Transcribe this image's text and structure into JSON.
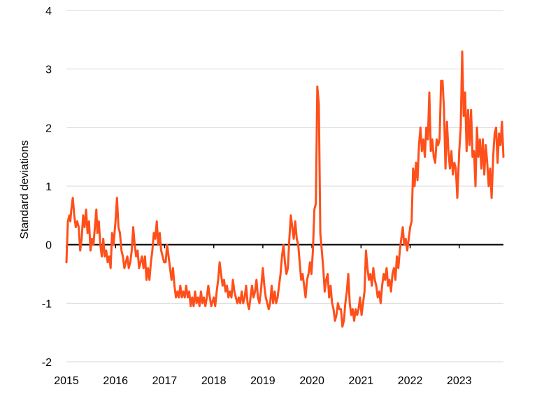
{
  "chart_data": {
    "type": "line",
    "title": "",
    "xlabel": "",
    "ylabel": "Standard deviations",
    "ylim": [
      -2,
      4
    ],
    "xlim": [
      2015.0,
      2023.9
    ],
    "yticks": [
      "4",
      "3",
      "2",
      "1",
      "0",
      "-1",
      "-2"
    ],
    "ytick_values": [
      4,
      3,
      2,
      1,
      0,
      -1,
      -2
    ],
    "xticks": [
      "2015",
      "2016",
      "2017",
      "2018",
      "2019",
      "2020",
      "2021",
      "2022",
      "2023"
    ],
    "xtick_values": [
      2015.0,
      2016.0,
      2017.0,
      2018.0,
      2019.0,
      2020.0,
      2021.0,
      2022.0,
      2023.0
    ],
    "grid": "horizontal",
    "line_color": "#ff4f1a",
    "zero_line": true,
    "series": [
      {
        "values": [
          [
            2015.0,
            -0.3
          ],
          [
            2015.03,
            0.4
          ],
          [
            2015.06,
            0.5
          ],
          [
            2015.08,
            0.4
          ],
          [
            2015.1,
            0.6
          ],
          [
            2015.13,
            0.8
          ],
          [
            2015.16,
            0.5
          ],
          [
            2015.19,
            0.3
          ],
          [
            2015.22,
            0.4
          ],
          [
            2015.25,
            0.3
          ],
          [
            2015.28,
            -0.1
          ],
          [
            2015.31,
            0.1
          ],
          [
            2015.34,
            0.5
          ],
          [
            2015.37,
            0.3
          ],
          [
            2015.4,
            0.6
          ],
          [
            2015.43,
            0.2
          ],
          [
            2015.46,
            0.4
          ],
          [
            2015.49,
            -0.1
          ],
          [
            2015.52,
            0.1
          ],
          [
            2015.55,
            0.0
          ],
          [
            2015.58,
            0.3
          ],
          [
            2015.61,
            0.6
          ],
          [
            2015.63,
            0.2
          ],
          [
            2015.66,
            0.4
          ],
          [
            2015.69,
            0.0
          ],
          [
            2015.72,
            -0.2
          ],
          [
            2015.75,
            0.1
          ],
          [
            2015.78,
            -0.2
          ],
          [
            2015.81,
            -0.1
          ],
          [
            2015.84,
            -0.3
          ],
          [
            2015.87,
            -0.2
          ],
          [
            2015.9,
            -0.4
          ],
          [
            2015.93,
            0.2
          ],
          [
            2015.96,
            0.0
          ],
          [
            2016.0,
            0.4
          ],
          [
            2016.03,
            0.8
          ],
          [
            2016.06,
            0.3
          ],
          [
            2016.09,
            0.2
          ],
          [
            2016.12,
            -0.1
          ],
          [
            2016.15,
            -0.2
          ],
          [
            2016.18,
            -0.4
          ],
          [
            2016.21,
            -0.3
          ],
          [
            2016.24,
            -0.2
          ],
          [
            2016.27,
            -0.4
          ],
          [
            2016.3,
            -0.3
          ],
          [
            2016.33,
            -0.1
          ],
          [
            2016.36,
            0.3
          ],
          [
            2016.39,
            0.0
          ],
          [
            2016.42,
            -0.2
          ],
          [
            2016.45,
            -0.1
          ],
          [
            2016.48,
            -0.4
          ],
          [
            2016.51,
            -0.3
          ],
          [
            2016.54,
            -0.2
          ],
          [
            2016.57,
            -0.4
          ],
          [
            2016.6,
            -0.2
          ],
          [
            2016.63,
            -0.6
          ],
          [
            2016.66,
            -0.4
          ],
          [
            2016.69,
            -0.6
          ],
          [
            2016.72,
            -0.3
          ],
          [
            2016.75,
            -0.1
          ],
          [
            2016.78,
            0.2
          ],
          [
            2016.81,
            0.1
          ],
          [
            2016.84,
            0.4
          ],
          [
            2016.87,
            0.0
          ],
          [
            2016.9,
            0.2
          ],
          [
            2016.93,
            -0.1
          ],
          [
            2016.96,
            -0.2
          ],
          [
            2016.99,
            -0.3
          ],
          [
            2017.02,
            -0.3
          ],
          [
            2017.05,
            0.0
          ],
          [
            2017.08,
            -0.2
          ],
          [
            2017.11,
            -0.4
          ],
          [
            2017.14,
            -0.6
          ],
          [
            2017.17,
            -0.4
          ],
          [
            2017.2,
            -0.7
          ],
          [
            2017.23,
            -0.9
          ],
          [
            2017.26,
            -0.8
          ],
          [
            2017.29,
            -0.9
          ],
          [
            2017.32,
            -0.7
          ],
          [
            2017.35,
            -0.9
          ],
          [
            2017.38,
            -0.8
          ],
          [
            2017.41,
            -0.9
          ],
          [
            2017.44,
            -0.7
          ],
          [
            2017.47,
            -0.9
          ],
          [
            2017.5,
            -0.8
          ],
          [
            2017.53,
            -1.05
          ],
          [
            2017.56,
            -0.9
          ],
          [
            2017.59,
            -1.05
          ],
          [
            2017.62,
            -0.8
          ],
          [
            2017.65,
            -1.0
          ],
          [
            2017.68,
            -0.9
          ],
          [
            2017.71,
            -1.05
          ],
          [
            2017.74,
            -0.8
          ],
          [
            2017.77,
            -1.0
          ],
          [
            2017.8,
            -0.9
          ],
          [
            2017.83,
            -1.05
          ],
          [
            2017.86,
            -0.9
          ],
          [
            2017.89,
            -0.7
          ],
          [
            2017.92,
            -0.9
          ],
          [
            2017.95,
            -1.05
          ],
          [
            2018.0,
            -0.9
          ],
          [
            2018.03,
            -1.05
          ],
          [
            2018.06,
            -0.8
          ],
          [
            2018.09,
            -0.6
          ],
          [
            2018.12,
            -0.3
          ],
          [
            2018.15,
            -0.5
          ],
          [
            2018.18,
            -0.7
          ],
          [
            2018.21,
            -0.6
          ],
          [
            2018.24,
            -0.8
          ],
          [
            2018.27,
            -0.7
          ],
          [
            2018.3,
            -0.9
          ],
          [
            2018.33,
            -0.8
          ],
          [
            2018.36,
            -0.9
          ],
          [
            2018.39,
            -0.6
          ],
          [
            2018.42,
            -0.8
          ],
          [
            2018.45,
            -0.9
          ],
          [
            2018.48,
            -1.0
          ],
          [
            2018.51,
            -0.9
          ],
          [
            2018.54,
            -1.0
          ],
          [
            2018.57,
            -0.8
          ],
          [
            2018.6,
            -1.0
          ],
          [
            2018.63,
            -0.9
          ],
          [
            2018.66,
            -0.7
          ],
          [
            2018.69,
            -1.0
          ],
          [
            2018.72,
            -1.1
          ],
          [
            2018.75,
            -0.9
          ],
          [
            2018.78,
            -0.7
          ],
          [
            2018.81,
            -0.9
          ],
          [
            2018.84,
            -0.8
          ],
          [
            2018.87,
            -0.6
          ],
          [
            2018.9,
            -0.9
          ],
          [
            2018.93,
            -1.0
          ],
          [
            2018.96,
            -0.8
          ],
          [
            2019.0,
            -0.4
          ],
          [
            2019.03,
            -0.7
          ],
          [
            2019.06,
            -0.9
          ],
          [
            2019.09,
            -1.0
          ],
          [
            2019.12,
            -1.1
          ],
          [
            2019.15,
            -1.0
          ],
          [
            2019.18,
            -0.7
          ],
          [
            2019.21,
            -1.0
          ],
          [
            2019.24,
            -0.8
          ],
          [
            2019.27,
            -1.0
          ],
          [
            2019.3,
            -0.9
          ],
          [
            2019.33,
            -0.7
          ],
          [
            2019.36,
            -0.5
          ],
          [
            2019.39,
            -0.2
          ],
          [
            2019.42,
            0.0
          ],
          [
            2019.45,
            -0.3
          ],
          [
            2019.48,
            -0.5
          ],
          [
            2019.51,
            -0.4
          ],
          [
            2019.54,
            0.1
          ],
          [
            2019.57,
            0.5
          ],
          [
            2019.6,
            0.3
          ],
          [
            2019.63,
            0.1
          ],
          [
            2019.66,
            0.4
          ],
          [
            2019.69,
            0.1
          ],
          [
            2019.72,
            0.0
          ],
          [
            2019.75,
            -0.3
          ],
          [
            2019.78,
            -0.6
          ],
          [
            2019.81,
            -0.5
          ],
          [
            2019.84,
            -0.7
          ],
          [
            2019.87,
            -0.9
          ],
          [
            2019.9,
            -0.6
          ],
          [
            2019.93,
            -0.5
          ],
          [
            2019.96,
            -0.3
          ],
          [
            2019.99,
            -0.5
          ],
          [
            2020.02,
            -0.1
          ],
          [
            2020.05,
            0.6
          ],
          [
            2020.08,
            0.7
          ],
          [
            2020.11,
            2.7
          ],
          [
            2020.14,
            2.4
          ],
          [
            2020.17,
            0.2
          ],
          [
            2020.2,
            -0.1
          ],
          [
            2020.23,
            -0.4
          ],
          [
            2020.26,
            -0.8
          ],
          [
            2020.29,
            -0.6
          ],
          [
            2020.32,
            -0.5
          ],
          [
            2020.35,
            -0.9
          ],
          [
            2020.38,
            -0.7
          ],
          [
            2020.41,
            -1.0
          ],
          [
            2020.44,
            -1.1
          ],
          [
            2020.47,
            -1.3
          ],
          [
            2020.5,
            -1.2
          ],
          [
            2020.53,
            -1.0
          ],
          [
            2020.56,
            -1.1
          ],
          [
            2020.59,
            -1.1
          ],
          [
            2020.62,
            -1.4
          ],
          [
            2020.65,
            -1.3
          ],
          [
            2020.68,
            -1.0
          ],
          [
            2020.71,
            -0.8
          ],
          [
            2020.74,
            -0.5
          ],
          [
            2020.77,
            -1.0
          ],
          [
            2020.8,
            -1.2
          ],
          [
            2020.83,
            -1.1
          ],
          [
            2020.86,
            -1.3
          ],
          [
            2020.89,
            -1.1
          ],
          [
            2020.92,
            -1.2
          ],
          [
            2020.95,
            -1.1
          ],
          [
            2020.98,
            -0.9
          ],
          [
            2021.01,
            -1.2
          ],
          [
            2021.04,
            -1.0
          ],
          [
            2021.07,
            -0.8
          ],
          [
            2021.1,
            -0.1
          ],
          [
            2021.13,
            -0.4
          ],
          [
            2021.16,
            -0.6
          ],
          [
            2021.19,
            -0.5
          ],
          [
            2021.22,
            -0.7
          ],
          [
            2021.25,
            -0.4
          ],
          [
            2021.28,
            -0.6
          ],
          [
            2021.31,
            -0.7
          ],
          [
            2021.34,
            -0.9
          ],
          [
            2021.37,
            -0.8
          ],
          [
            2021.4,
            -1.0
          ],
          [
            2021.43,
            -0.7
          ],
          [
            2021.46,
            -0.5
          ],
          [
            2021.49,
            -0.6
          ],
          [
            2021.52,
            -0.4
          ],
          [
            2021.55,
            -0.7
          ],
          [
            2021.58,
            -0.6
          ],
          [
            2021.61,
            -0.8
          ],
          [
            2021.64,
            -0.5
          ],
          [
            2021.67,
            -0.4
          ],
          [
            2021.7,
            -0.6
          ],
          [
            2021.73,
            -0.2
          ],
          [
            2021.76,
            -0.4
          ],
          [
            2021.79,
            -0.1
          ],
          [
            2021.82,
            0.1
          ],
          [
            2021.85,
            0.3
          ],
          [
            2021.88,
            0.0
          ],
          [
            2021.91,
            0.1
          ],
          [
            2021.94,
            -0.1
          ],
          [
            2021.97,
            0.1
          ],
          [
            2022.0,
            0.3
          ],
          [
            2022.03,
            0.4
          ],
          [
            2022.06,
            1.3
          ],
          [
            2022.09,
            1.0
          ],
          [
            2022.12,
            1.4
          ],
          [
            2022.15,
            1.1
          ],
          [
            2022.18,
            1.7
          ],
          [
            2022.21,
            2.0
          ],
          [
            2022.24,
            1.6
          ],
          [
            2022.27,
            1.8
          ],
          [
            2022.3,
            1.5
          ],
          [
            2022.33,
            2.0
          ],
          [
            2022.36,
            1.8
          ],
          [
            2022.39,
            2.6
          ],
          [
            2022.42,
            1.6
          ],
          [
            2022.45,
            1.8
          ],
          [
            2022.48,
            1.5
          ],
          [
            2022.51,
            1.4
          ],
          [
            2022.54,
            1.8
          ],
          [
            2022.57,
            1.7
          ],
          [
            2022.6,
            1.8
          ],
          [
            2022.63,
            2.8
          ],
          [
            2022.66,
            2.8
          ],
          [
            2022.69,
            2.3
          ],
          [
            2022.72,
            1.3
          ],
          [
            2022.75,
            2.1
          ],
          [
            2022.78,
            1.6
          ],
          [
            2022.81,
            1.3
          ],
          [
            2022.84,
            1.6
          ],
          [
            2022.87,
            1.2
          ],
          [
            2022.9,
            1.4
          ],
          [
            2022.93,
            1.3
          ],
          [
            2022.96,
            0.8
          ],
          [
            2023.0,
            1.6
          ],
          [
            2023.03,
            2.0
          ],
          [
            2023.06,
            3.3
          ],
          [
            2023.09,
            2.2
          ],
          [
            2023.12,
            2.6
          ],
          [
            2023.15,
            1.6
          ],
          [
            2023.18,
            2.3
          ],
          [
            2023.21,
            1.7
          ],
          [
            2023.24,
            2.3
          ],
          [
            2023.27,
            1.5
          ],
          [
            2023.3,
            1.6
          ],
          [
            2023.33,
            1.0
          ],
          [
            2023.36,
            2.0
          ],
          [
            2023.39,
            1.5
          ],
          [
            2023.42,
            1.8
          ],
          [
            2023.45,
            1.3
          ],
          [
            2023.48,
            1.8
          ],
          [
            2023.51,
            1.2
          ],
          [
            2023.54,
            1.7
          ],
          [
            2023.57,
            1.4
          ],
          [
            2023.6,
            1.0
          ],
          [
            2023.63,
            1.3
          ],
          [
            2023.66,
            0.8
          ],
          [
            2023.69,
            1.5
          ],
          [
            2023.72,
            1.9
          ],
          [
            2023.75,
            2.0
          ],
          [
            2023.78,
            1.4
          ],
          [
            2023.81,
            1.9
          ],
          [
            2023.84,
            1.7
          ],
          [
            2023.87,
            2.1
          ],
          [
            2023.9,
            1.5
          ]
        ]
      }
    ]
  }
}
